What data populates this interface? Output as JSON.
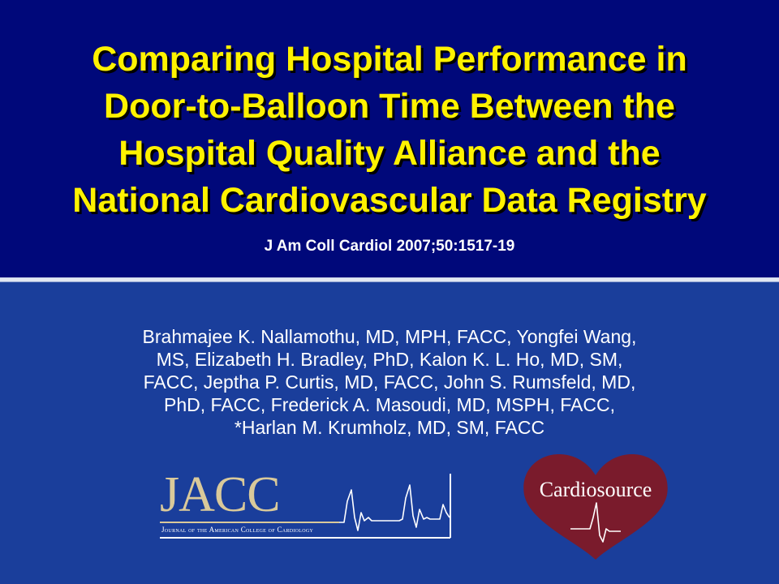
{
  "slide": {
    "title_lines": [
      "Comparing Hospital Performance in",
      "Door-to-Balloon Time Between the",
      "Hospital Quality Alliance and the",
      "National Cardiovascular Data Registry"
    ],
    "citation": "J Am Coll Cardiol 2007;50:1517-19",
    "author_lines": [
      "Brahmajee K. Nallamothu, MD, MPH, FACC, Yongfei Wang,",
      "MS, Elizabeth H. Bradley, PhD, Kalon K. L. Ho, MD, SM,",
      "FACC, Jeptha P. Curtis, MD, FACC, John S. Rumsfeld, MD,",
      "PhD, FACC, Frederick A. Masoudi, MD, MSPH, FACC,",
      "*Harlan M. Krumholz, MD, SM, FACC"
    ]
  },
  "logos": {
    "jacc": {
      "wordmark": "JACC",
      "subtitle": "Journal of the American College of Cardiology",
      "icon": "ekg-trace-icon"
    },
    "cardiosource": {
      "wordmark": "Cardiosource",
      "icon": "heart-ekg-icon"
    }
  },
  "colors": {
    "header_background": "#00087a",
    "body_background": "#1a3e9b",
    "title_text": "#fff200",
    "jacc_gold": "#d9c99a",
    "heart_red": "#7a1b2c"
  }
}
